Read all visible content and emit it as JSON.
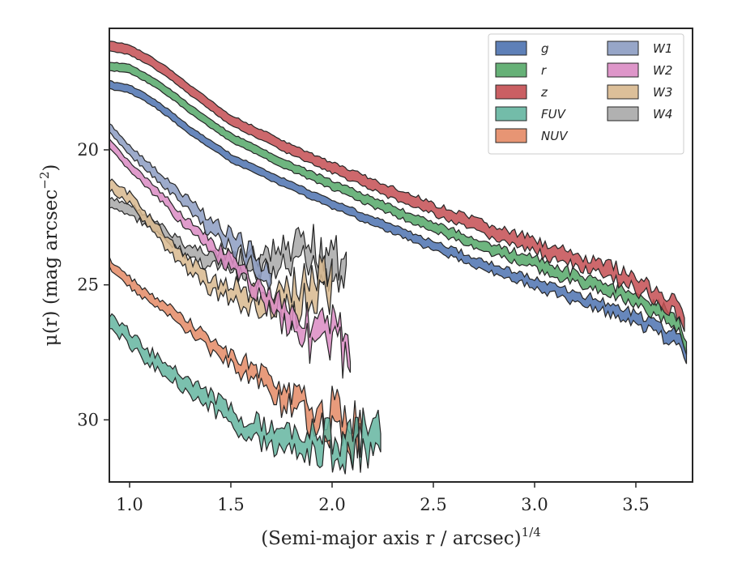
{
  "chart_data": {
    "type": "area",
    "xlabel": "(Semi-major axis r / arcsec)",
    "xlabel_sup": "1/4",
    "ylabel": "μ(r) (mag arcsec",
    "ylabel_sup": "−2",
    "ylabel_tail": ")",
    "xlim": [
      0.9,
      3.78
    ],
    "ylim": [
      32.3,
      15.5
    ],
    "y_inverted": true,
    "xticks": [
      1.0,
      1.5,
      2.0,
      2.5,
      3.0,
      3.5
    ],
    "xtick_labels": [
      "1.0",
      "1.5",
      "2.0",
      "2.5",
      "3.0",
      "3.5"
    ],
    "yticks": [
      20,
      25,
      30
    ],
    "ytick_labels": [
      "20",
      "25",
      "30"
    ],
    "grid": false,
    "legend_placement": "top-right",
    "legend_columns": 2,
    "series": [
      {
        "name": "g",
        "color": "#4c72b0",
        "band": 0.28,
        "noise": 0.02,
        "noise_growth": 0.2,
        "points": [
          [
            0.9,
            17.6
          ],
          [
            1.0,
            17.75
          ],
          [
            1.1,
            18.15
          ],
          [
            1.2,
            18.7
          ],
          [
            1.3,
            19.3
          ],
          [
            1.5,
            20.3
          ],
          [
            1.8,
            21.35
          ],
          [
            2.0,
            22.0
          ],
          [
            2.3,
            22.95
          ],
          [
            2.5,
            23.55
          ],
          [
            2.8,
            24.4
          ],
          [
            3.0,
            24.95
          ],
          [
            3.2,
            25.45
          ],
          [
            3.4,
            25.95
          ],
          [
            3.6,
            26.6
          ],
          [
            3.72,
            27.1
          ],
          [
            3.75,
            27.6
          ]
        ]
      },
      {
        "name": "r",
        "color": "#55a868",
        "band": 0.3,
        "noise": 0.02,
        "noise_growth": 0.22,
        "points": [
          [
            0.9,
            16.9
          ],
          [
            1.0,
            17.0
          ],
          [
            1.1,
            17.4
          ],
          [
            1.2,
            17.9
          ],
          [
            1.3,
            18.5
          ],
          [
            1.5,
            19.55
          ],
          [
            1.8,
            20.65
          ],
          [
            2.0,
            21.3
          ],
          [
            2.3,
            22.25
          ],
          [
            2.5,
            22.85
          ],
          [
            2.8,
            23.7
          ],
          [
            3.0,
            24.2
          ],
          [
            3.2,
            24.75
          ],
          [
            3.4,
            25.25
          ],
          [
            3.6,
            25.95
          ],
          [
            3.72,
            26.5
          ],
          [
            3.75,
            27.2
          ]
        ]
      },
      {
        "name": "z",
        "color": "#c44e52",
        "band": 0.35,
        "noise": 0.02,
        "noise_growth": 0.28,
        "points": [
          [
            0.9,
            16.15
          ],
          [
            1.0,
            16.3
          ],
          [
            1.1,
            16.7
          ],
          [
            1.2,
            17.2
          ],
          [
            1.3,
            17.8
          ],
          [
            1.5,
            18.9
          ],
          [
            1.8,
            20.0
          ],
          [
            2.0,
            20.65
          ],
          [
            2.3,
            21.6
          ],
          [
            2.5,
            22.2
          ],
          [
            2.8,
            23.05
          ],
          [
            3.0,
            23.55
          ],
          [
            3.2,
            24.1
          ],
          [
            3.4,
            24.6
          ],
          [
            3.6,
            25.35
          ],
          [
            3.72,
            26.0
          ],
          [
            3.74,
            26.6
          ]
        ]
      },
      {
        "name": "FUV",
        "color": "#64b5a0",
        "band": 0.4,
        "noise": 0.15,
        "noise_growth": 0.9,
        "points": [
          [
            0.9,
            26.3
          ],
          [
            1.0,
            27.0
          ],
          [
            1.1,
            27.7
          ],
          [
            1.2,
            28.2
          ],
          [
            1.3,
            28.8
          ],
          [
            1.4,
            29.3
          ],
          [
            1.5,
            29.9
          ],
          [
            1.6,
            30.3
          ],
          [
            1.7,
            30.7
          ],
          [
            1.8,
            30.5
          ],
          [
            1.9,
            30.9
          ],
          [
            2.0,
            30.9
          ],
          [
            2.1,
            31.0
          ],
          [
            2.24,
            31.0
          ]
        ]
      },
      {
        "name": "NUV",
        "color": "#e48a65",
        "band": 0.3,
        "noise": 0.08,
        "noise_growth": 0.9,
        "points": [
          [
            0.9,
            24.2
          ],
          [
            1.0,
            24.9
          ],
          [
            1.1,
            25.5
          ],
          [
            1.2,
            26.0
          ],
          [
            1.3,
            26.6
          ],
          [
            1.4,
            27.2
          ],
          [
            1.5,
            27.8
          ],
          [
            1.6,
            28.2
          ],
          [
            1.7,
            28.7
          ],
          [
            1.8,
            29.4
          ],
          [
            1.9,
            29.7
          ],
          [
            2.0,
            30.0
          ],
          [
            2.1,
            30.4
          ],
          [
            2.15,
            30.6
          ]
        ]
      },
      {
        "name": "W1",
        "color": "#8c9cc2",
        "band": 0.3,
        "noise": 0.05,
        "noise_growth": 0.6,
        "points": [
          [
            0.9,
            19.2
          ],
          [
            1.0,
            20.0
          ],
          [
            1.2,
            21.4
          ],
          [
            1.4,
            22.8
          ],
          [
            1.6,
            24.0
          ],
          [
            1.7,
            24.5
          ]
        ]
      },
      {
        "name": "W2",
        "color": "#da8bc3",
        "band": 0.3,
        "noise": 0.05,
        "noise_growth": 1.0,
        "points": [
          [
            0.9,
            19.8
          ],
          [
            1.0,
            20.6
          ],
          [
            1.2,
            22.1
          ],
          [
            1.4,
            23.6
          ],
          [
            1.6,
            24.9
          ],
          [
            1.8,
            26.2
          ],
          [
            1.9,
            26.8
          ],
          [
            2.0,
            27.0
          ],
          [
            2.09,
            27.2
          ]
        ]
      },
      {
        "name": "W3",
        "color": "#d8b88e",
        "band": 0.35,
        "noise": 0.1,
        "noise_growth": 1.0,
        "points": [
          [
            0.9,
            21.3
          ],
          [
            1.0,
            21.8
          ],
          [
            1.1,
            22.7
          ],
          [
            1.2,
            23.6
          ],
          [
            1.3,
            24.3
          ],
          [
            1.4,
            25.0
          ],
          [
            1.5,
            25.3
          ],
          [
            1.6,
            25.6
          ],
          [
            1.7,
            25.8
          ],
          [
            1.8,
            25.5
          ],
          [
            1.9,
            25.3
          ],
          [
            2.0,
            25.3
          ]
        ]
      },
      {
        "name": "W4",
        "color": "#a8a8a8",
        "band": 0.3,
        "noise": 0.1,
        "noise_growth": 1.1,
        "points": [
          [
            0.9,
            22.0
          ],
          [
            1.0,
            22.2
          ],
          [
            1.1,
            22.7
          ],
          [
            1.2,
            23.3
          ],
          [
            1.3,
            23.8
          ],
          [
            1.4,
            24.0
          ],
          [
            1.5,
            24.3
          ],
          [
            1.6,
            24.4
          ],
          [
            1.7,
            24.2
          ],
          [
            1.8,
            24.1
          ],
          [
            1.9,
            24.0
          ],
          [
            2.0,
            24.0
          ],
          [
            2.07,
            24.0
          ]
        ]
      }
    ]
  }
}
